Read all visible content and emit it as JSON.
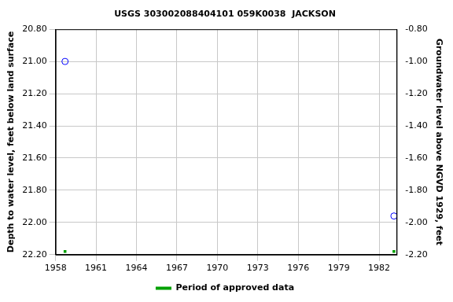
{
  "chart_data": {
    "type": "scatter",
    "title": "USGS 303002088404101 059K0038  JACKSON",
    "y_label": "Depth to water level, feet below land surface",
    "y2_label": "Groundwater level above NGVD 1929, feet",
    "series": [
      {
        "color": "#0000ff",
        "marker": "circle-open",
        "x": [
          1958.7,
          1983.1
        ],
        "values": [
          21.0,
          21.96
        ]
      },
      {
        "name": "Period of approved data",
        "color": "#00a000",
        "marker": "square",
        "x": [
          1958.7,
          1983.1
        ],
        "values": [
          22.18,
          22.18
        ]
      }
    ],
    "xlim": [
      1958,
      1983.3
    ],
    "xticks": [
      1958,
      1961,
      1964,
      1967,
      1970,
      1973,
      1976,
      1979,
      1982
    ],
    "ylim": [
      22.2,
      20.8
    ],
    "yticks": [
      {
        "value": 20.8,
        "label": "20.80"
      },
      {
        "value": 21.0,
        "label": "21.00"
      },
      {
        "value": 21.2,
        "label": "21.20"
      },
      {
        "value": 21.4,
        "label": "21.40"
      },
      {
        "value": 21.6,
        "label": "21.60"
      },
      {
        "value": 21.8,
        "label": "21.80"
      },
      {
        "value": 22.0,
        "label": "22.00"
      },
      {
        "value": 22.2,
        "label": "22.20"
      }
    ],
    "y2lim": [
      -2.2,
      -0.8
    ],
    "y2ticks": [
      {
        "value": -0.8,
        "label": "-0.80"
      },
      {
        "value": -1.0,
        "label": "-1.00"
      },
      {
        "value": -1.2,
        "label": "-1.20"
      },
      {
        "value": -1.4,
        "label": "-1.40"
      },
      {
        "value": -1.6,
        "label": "-1.60"
      },
      {
        "value": -1.8,
        "label": "-1.80"
      },
      {
        "value": -2.0,
        "label": "-2.00"
      },
      {
        "value": -2.2,
        "label": "-2.20"
      }
    ],
    "grid": true,
    "legend": "bottom"
  }
}
